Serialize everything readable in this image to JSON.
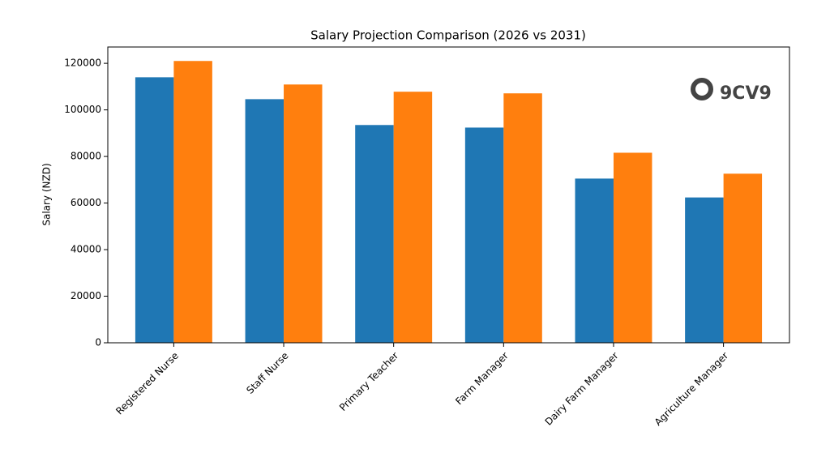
{
  "chart_data": {
    "type": "bar",
    "title": "Salary Projection Comparison (2026 vs 2031)",
    "y_label": "Salary (NZD)",
    "categories": [
      "Registered Nurse",
      "Staff Nurse",
      "Primary Teacher",
      "Farm Manager",
      "Dairy Farm Manager",
      "Agriculture Manager"
    ],
    "series": [
      {
        "color": "#1f77b4",
        "values": [
          114000,
          104600,
          93500,
          92400,
          70500,
          62400
        ]
      },
      {
        "color": "#ff7f0e",
        "values": [
          121000,
          110900,
          107800,
          107100,
          81600,
          72600
        ]
      }
    ],
    "ylim": [
      0,
      127000
    ],
    "yticks": [
      0,
      20000,
      40000,
      60000,
      80000,
      100000,
      120000
    ],
    "watermark": "9CV9"
  }
}
